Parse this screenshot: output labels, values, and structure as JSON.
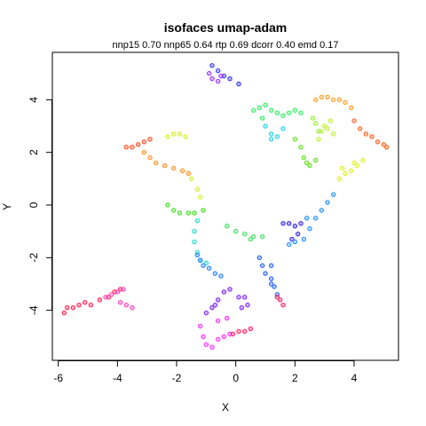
{
  "chart_data": {
    "type": "scatter",
    "title": "isofaces umap-adam",
    "subtitle": "nnp15 0.70 nnp65 0.64 rtp 0.69 dcorr 0.40 emd 0.17",
    "xlabel": "X",
    "ylabel": "Y",
    "xlim": [
      -6.2,
      5.5
    ],
    "ylim": [
      -5.9,
      5.8
    ],
    "xticks": [
      -6,
      -4,
      -2,
      0,
      2,
      4
    ],
    "yticks": [
      -4,
      -2,
      0,
      2,
      4
    ],
    "grid": false,
    "legend": "none",
    "marker": "open-circle",
    "color_mapping": "rainbow hue by pose",
    "segments": [
      {
        "points": [
          [
            -5.8,
            -4.1
          ],
          [
            -5.7,
            -3.9
          ],
          [
            -5.5,
            -3.9
          ],
          [
            -5.3,
            -3.8
          ],
          [
            -5.1,
            -3.7
          ],
          [
            -4.9,
            -3.8
          ],
          [
            -4.6,
            -3.6
          ],
          [
            -4.3,
            -3.5
          ],
          [
            -4.1,
            -3.3
          ],
          [
            -3.9,
            -3.2
          ]
        ],
        "color": "#ff1f50"
      },
      {
        "points": [
          [
            -4.4,
            -3.5
          ],
          [
            -4.2,
            -3.4
          ],
          [
            -4.0,
            -3.3
          ],
          [
            -3.8,
            -3.2
          ],
          [
            -3.9,
            -3.7
          ],
          [
            -3.7,
            -3.8
          ],
          [
            -3.5,
            -3.9
          ]
        ],
        "color": "#ff3fbf"
      },
      {
        "points": [
          [
            -3.7,
            2.2
          ],
          [
            -3.5,
            2.2
          ],
          [
            -3.3,
            2.3
          ],
          [
            -3.1,
            2.4
          ],
          [
            -2.9,
            2.5
          ]
        ],
        "color": "#ff4a20"
      },
      {
        "points": [
          [
            -3.1,
            2.0
          ],
          [
            -2.9,
            1.8
          ],
          [
            -2.7,
            1.6
          ],
          [
            -2.4,
            1.5
          ],
          [
            -2.1,
            1.4
          ],
          [
            -1.8,
            1.3
          ],
          [
            -1.6,
            1.2
          ]
        ],
        "color": "#ff9020"
      },
      {
        "points": [
          [
            -2.3,
            2.6
          ],
          [
            -2.1,
            2.7
          ],
          [
            -1.9,
            2.7
          ],
          [
            -1.7,
            2.6
          ],
          [
            -1.5,
            1.0
          ],
          [
            -1.3,
            0.6
          ],
          [
            -1.2,
            0.3
          ]
        ],
        "color": "#d8f020"
      },
      {
        "points": [
          [
            -2.3,
            -0.0
          ],
          [
            -2.1,
            -0.2
          ],
          [
            -1.9,
            -0.3
          ],
          [
            -1.6,
            -0.3
          ],
          [
            -1.4,
            -0.3
          ],
          [
            -1.1,
            -0.2
          ]
        ],
        "color": "#40e020"
      },
      {
        "points": [
          [
            -1.3,
            -0.6
          ],
          [
            -1.4,
            -1.0
          ],
          [
            -1.4,
            -1.4
          ],
          [
            -1.3,
            -1.8
          ],
          [
            -1.2,
            -2.1
          ],
          [
            -1.0,
            -2.2
          ]
        ],
        "color": "#20e0d0"
      },
      {
        "points": [
          [
            -1.3,
            -1.9
          ],
          [
            -1.2,
            -2.1
          ],
          [
            -1.1,
            -2.3
          ],
          [
            -0.9,
            -2.4
          ],
          [
            -0.7,
            -2.6
          ],
          [
            -0.5,
            -2.7
          ]
        ],
        "color": "#2080ff"
      },
      {
        "points": [
          [
            -1.0,
            -4.1
          ],
          [
            -0.8,
            -3.9
          ],
          [
            -0.6,
            -3.6
          ],
          [
            -0.4,
            -3.3
          ],
          [
            -0.2,
            -3.2
          ],
          [
            0.1,
            -3.5
          ],
          [
            0.2,
            -3.9
          ],
          [
            0.4,
            -3.8
          ],
          [
            0.3,
            -3.5
          ],
          [
            -0.7,
            -3.8
          ]
        ],
        "color": "#8020ff"
      },
      {
        "points": [
          [
            -1.2,
            -4.6
          ],
          [
            -1.1,
            -5.0
          ],
          [
            -1.0,
            -5.3
          ],
          [
            -0.8,
            -5.4
          ],
          [
            -0.6,
            -5.1
          ],
          [
            -0.4,
            -5.0
          ],
          [
            -0.2,
            -4.9
          ],
          [
            -0.6,
            -4.4
          ],
          [
            -0.3,
            -4.3
          ]
        ],
        "color": "#ff30ff"
      },
      {
        "points": [
          [
            -0.1,
            -4.9
          ],
          [
            0.1,
            -4.8
          ],
          [
            0.3,
            -4.8
          ],
          [
            0.5,
            -4.7
          ]
        ],
        "color": "#ff2060"
      },
      {
        "points": [
          [
            -0.8,
            5.3
          ],
          [
            -0.6,
            5.1
          ],
          [
            -0.4,
            4.9
          ],
          [
            -0.2,
            4.8
          ],
          [
            0.1,
            4.6
          ]
        ],
        "color": "#3030f0"
      },
      {
        "points": [
          [
            -0.9,
            5.0
          ],
          [
            -0.8,
            4.8
          ],
          [
            -0.6,
            4.7
          ],
          [
            -0.5,
            4.9
          ]
        ],
        "color": "#a030ff"
      },
      {
        "points": [
          [
            -0.3,
            -0.8
          ],
          [
            0.0,
            -1.0
          ],
          [
            0.3,
            -1.1
          ],
          [
            0.6,
            -1.2
          ],
          [
            0.9,
            -1.2
          ],
          [
            0.5,
            -1.3
          ]
        ],
        "color": "#40e060"
      },
      {
        "points": [
          [
            0.8,
            -2.0
          ],
          [
            0.9,
            -2.3
          ],
          [
            1.0,
            -2.6
          ],
          [
            1.2,
            -2.3
          ],
          [
            1.2,
            -2.8
          ],
          [
            1.3,
            -3.1
          ],
          [
            1.4,
            -3.4
          ],
          [
            1.2,
            -3.0
          ]
        ],
        "color": "#2060ff"
      },
      {
        "points": [
          [
            1.5,
            -3.6
          ],
          [
            1.6,
            -3.8
          ],
          [
            1.4,
            -3.5
          ]
        ],
        "color": "#ff2060"
      },
      {
        "points": [
          [
            1.6,
            -0.7
          ],
          [
            1.8,
            -0.7
          ],
          [
            2.0,
            -0.8
          ],
          [
            2.2,
            -0.7
          ],
          [
            2.1,
            -1.1
          ],
          [
            1.9,
            -1.3
          ]
        ],
        "color": "#3020e0"
      },
      {
        "points": [
          [
            1.8,
            -1.5
          ],
          [
            2.0,
            -1.4
          ],
          [
            2.3,
            -1.3
          ],
          [
            2.5,
            -0.9
          ],
          [
            2.7,
            -0.5
          ],
          [
            2.9,
            -0.2
          ],
          [
            3.1,
            0.1
          ],
          [
            3.3,
            0.4
          ],
          [
            2.4,
            -0.5
          ]
        ],
        "color": "#2090ff"
      },
      {
        "points": [
          [
            0.6,
            3.6
          ],
          [
            0.8,
            3.7
          ],
          [
            1.0,
            3.8
          ],
          [
            1.2,
            3.6
          ],
          [
            1.4,
            3.5
          ],
          [
            1.6,
            3.4
          ],
          [
            1.8,
            3.5
          ],
          [
            2.0,
            3.6
          ],
          [
            2.2,
            3.5
          ],
          [
            0.9,
            3.3
          ]
        ],
        "color": "#30f060"
      },
      {
        "points": [
          [
            1.0,
            3.0
          ],
          [
            1.2,
            2.7
          ],
          [
            1.4,
            2.6
          ],
          [
            1.2,
            2.5
          ],
          [
            1.6,
            2.9
          ]
        ],
        "color": "#20d0f0"
      },
      {
        "points": [
          [
            2.0,
            2.5
          ],
          [
            2.2,
            2.2
          ],
          [
            2.3,
            1.8
          ],
          [
            2.5,
            1.5
          ],
          [
            2.7,
            1.7
          ],
          [
            2.4,
            1.6
          ]
        ],
        "color": "#60e020"
      },
      {
        "points": [
          [
            2.8,
            2.5
          ],
          [
            3.0,
            3.0
          ],
          [
            3.2,
            3.2
          ],
          [
            3.1,
            2.9
          ],
          [
            2.9,
            2.8
          ],
          [
            3.3,
            2.7
          ]
        ],
        "color": "#c0f030"
      },
      {
        "points": [
          [
            2.7,
            4.0
          ],
          [
            2.9,
            4.1
          ],
          [
            3.1,
            4.1
          ],
          [
            3.3,
            4.0
          ],
          [
            3.5,
            4.0
          ],
          [
            3.7,
            3.9
          ],
          [
            3.9,
            3.7
          ]
        ],
        "color": "#ffa020"
      },
      {
        "points": [
          [
            4.0,
            3.2
          ],
          [
            4.2,
            2.9
          ],
          [
            4.4,
            2.7
          ],
          [
            4.6,
            2.6
          ],
          [
            4.8,
            2.4
          ],
          [
            5.0,
            2.3
          ],
          [
            5.1,
            2.2
          ]
        ],
        "color": "#ff6020"
      },
      {
        "points": [
          [
            3.5,
            1.0
          ],
          [
            3.7,
            1.2
          ],
          [
            3.9,
            1.3
          ],
          [
            4.1,
            1.5
          ],
          [
            4.3,
            1.7
          ],
          [
            4.0,
            1.6
          ],
          [
            3.6,
            1.4
          ]
        ],
        "color": "#e0f020"
      },
      {
        "points": [
          [
            2.6,
            3.3
          ],
          [
            2.7,
            3.1
          ],
          [
            2.8,
            2.8
          ]
        ],
        "color": "#90f030"
      }
    ]
  }
}
